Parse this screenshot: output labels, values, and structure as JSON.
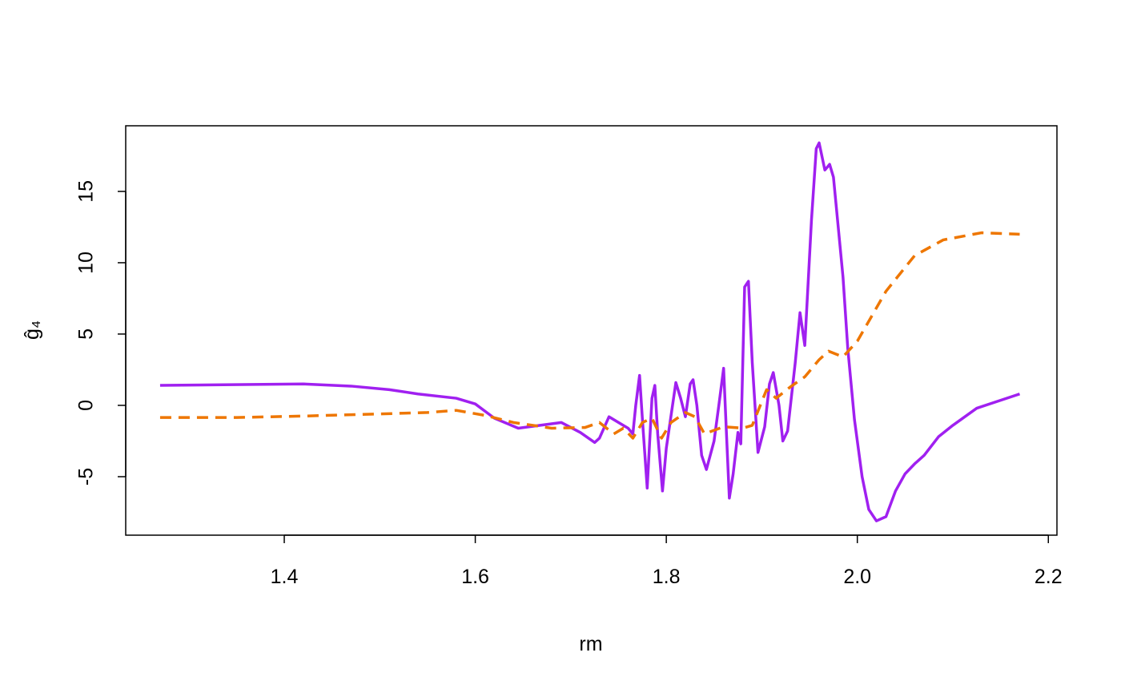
{
  "chart_data": {
    "type": "line",
    "x_label": "rm",
    "y_label": "ĝ₄",
    "xlim": [
      1.234,
      2.209
    ],
    "ylim": [
      -9.1,
      19.6
    ],
    "xticks": [
      1.4,
      1.6,
      1.8,
      {
        "value": 2.0,
        "label": "2.0"
      },
      2.2
    ],
    "yticks": [
      -5,
      0,
      5,
      10,
      15
    ],
    "series": [
      {
        "color": "#a020f0",
        "dash": "solid",
        "x": [
          1.27,
          1.42,
          1.47,
          1.51,
          1.54,
          1.58,
          1.6,
          1.62,
          1.645,
          1.69,
          1.71,
          1.725,
          1.73,
          1.74,
          1.75,
          1.76,
          1.765,
          1.768,
          1.772,
          1.775,
          1.78,
          1.785,
          1.788,
          1.791,
          1.796,
          1.8,
          1.81,
          1.815,
          1.82,
          1.825,
          1.828,
          1.832,
          1.837,
          1.842,
          1.85,
          1.855,
          1.86,
          1.863,
          1.866,
          1.87,
          1.875,
          1.878,
          1.882,
          1.886,
          1.89,
          1.896,
          1.903,
          1.908,
          1.912,
          1.918,
          1.922,
          1.927,
          1.935,
          1.94,
          1.945,
          1.952,
          1.957,
          1.96,
          1.966,
          1.971,
          1.975,
          1.985,
          1.99,
          1.997,
          2.005,
          2.012,
          2.02,
          2.03,
          2.04,
          2.05,
          2.06,
          2.07,
          2.085,
          2.1,
          2.125,
          2.17
        ],
        "values": [
          1.4,
          1.5,
          1.35,
          1.1,
          0.8,
          0.5,
          0.1,
          -0.9,
          -1.6,
          -1.2,
          -1.9,
          -2.6,
          -2.3,
          -0.8,
          -1.2,
          -1.6,
          -2.0,
          0,
          2.1,
          -1.0,
          -5.8,
          0.5,
          1.4,
          -2.0,
          -6.0,
          -3.0,
          1.6,
          0.5,
          -0.8,
          1.5,
          1.8,
          0,
          -3.5,
          -4.5,
          -2.5,
          0,
          2.6,
          -2,
          -6.5,
          -4.8,
          -1.9,
          -2.7,
          8.3,
          8.7,
          3,
          -3.3,
          -1.5,
          1.5,
          2.3,
          0,
          -2.5,
          -1.8,
          3,
          6.5,
          4.2,
          13,
          18,
          18.4,
          16.5,
          16.9,
          16,
          9,
          4,
          -1,
          -5,
          -7.3,
          -8.1,
          -7.8,
          -6,
          -4.8,
          -4.1,
          -3.5,
          -2.2,
          -1.4,
          -0.2,
          0.8
        ]
      },
      {
        "color": "#ee7600",
        "dash": "dashed",
        "x": [
          1.27,
          1.35,
          1.42,
          1.5,
          1.55,
          1.58,
          1.61,
          1.64,
          1.68,
          1.715,
          1.73,
          1.745,
          1.755,
          1.765,
          1.775,
          1.785,
          1.795,
          1.805,
          1.82,
          1.83,
          1.84,
          1.86,
          1.88,
          1.89,
          1.905,
          1.915,
          1.93,
          1.945,
          1.96,
          1.97,
          1.985,
          2.0,
          2.03,
          2.06,
          2.09,
          2.13,
          2.17
        ],
        "values": [
          -0.85,
          -0.85,
          -0.75,
          -0.6,
          -0.5,
          -0.35,
          -0.7,
          -1.2,
          -1.6,
          -1.55,
          -1.2,
          -2.0,
          -1.6,
          -2.3,
          -1.2,
          -0.9,
          -2.3,
          -1.2,
          -0.5,
          -0.8,
          -2.0,
          -1.5,
          -1.6,
          -1.4,
          1.1,
          0.5,
          1.3,
          2,
          3.2,
          3.8,
          3.4,
          4.5,
          8,
          10.5,
          11.6,
          12.1,
          12
        ]
      }
    ]
  }
}
